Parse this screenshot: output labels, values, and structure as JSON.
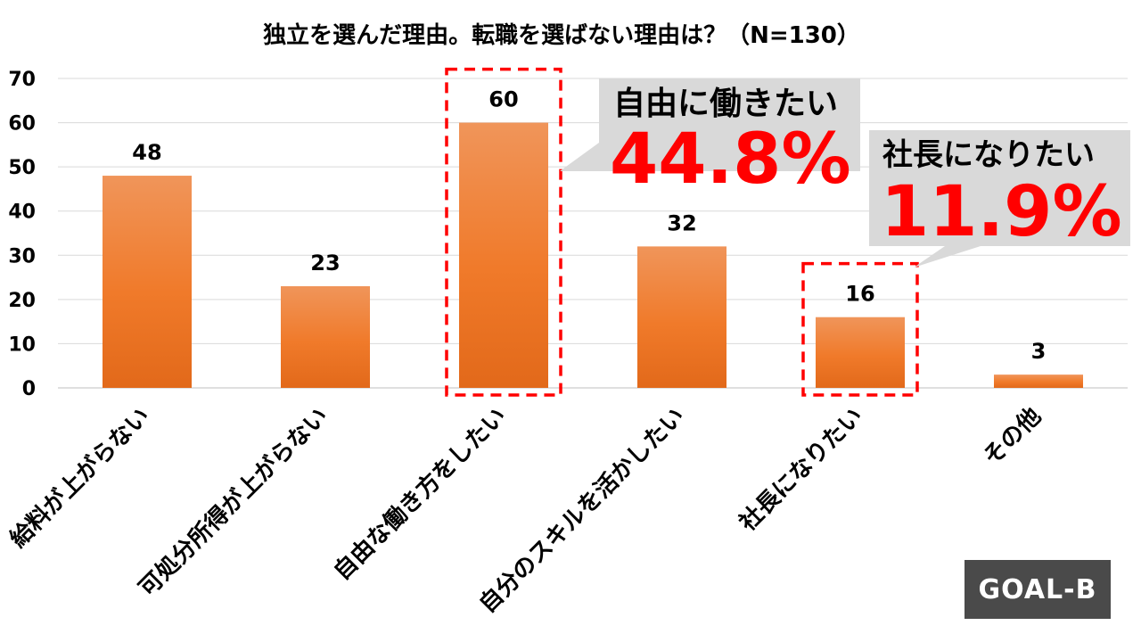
{
  "chart_data": {
    "type": "bar",
    "title": "独立を選んだ理由。転職を選ばない理由は？（N=130）",
    "categories": [
      "給料が上がらない",
      "可処分所得が上がらない",
      "自由な働き方をしたい",
      "自分のスキルを活かしたい",
      "社長になりたい",
      "その他"
    ],
    "values": [
      48,
      23,
      60,
      32,
      16,
      3
    ],
    "ylim": [
      0,
      70
    ],
    "yticks": [
      0,
      10,
      20,
      30,
      40,
      50,
      60,
      70
    ],
    "grid": true,
    "bar_color": "#f07a2a",
    "highlight_color": "#ff0000",
    "callout_bg": "#d9d9d9",
    "highlighted_indices": [
      2,
      4
    ],
    "annotations": [
      {
        "text": "自由に働きたい",
        "value": "44.8%",
        "category_index": 2
      },
      {
        "text": "社長になりたい",
        "value": "11.9%",
        "category_index": 4
      }
    ]
  },
  "logo": "GOAL-B"
}
